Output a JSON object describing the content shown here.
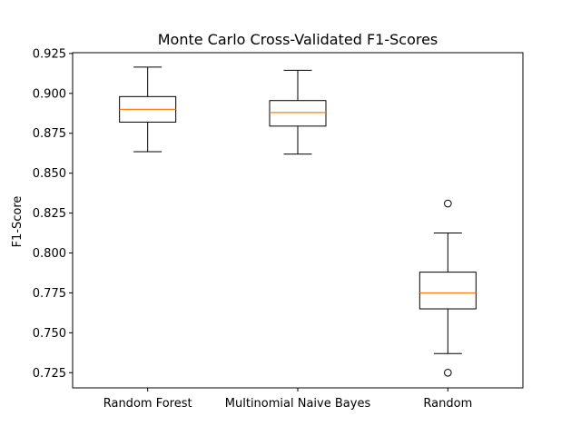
{
  "chart_data": {
    "type": "box",
    "title": "Monte Carlo Cross-Validated F1-Scores",
    "xlabel": "",
    "ylabel": "F1-Score",
    "ylim": [
      0.7155,
      0.9255
    ],
    "yticks": [
      "0.725",
      "0.750",
      "0.775",
      "0.800",
      "0.825",
      "0.850",
      "0.875",
      "0.900",
      "0.925"
    ],
    "ytick_values": [
      0.725,
      0.75,
      0.775,
      0.8,
      0.825,
      0.85,
      0.875,
      0.9,
      0.925
    ],
    "categories": [
      "Random Forest",
      "Multinomial Naive Bayes",
      "Random"
    ],
    "boxes": [
      {
        "whisker_low": 0.8635,
        "q1": 0.882,
        "median": 0.89,
        "q3": 0.898,
        "whisker_high": 0.9165,
        "outliers": []
      },
      {
        "whisker_low": 0.862,
        "q1": 0.8795,
        "median": 0.888,
        "q3": 0.8955,
        "whisker_high": 0.9145,
        "outliers": []
      },
      {
        "whisker_low": 0.737,
        "q1": 0.765,
        "median": 0.775,
        "q3": 0.788,
        "whisker_high": 0.8125,
        "outliers": [
          0.831,
          0.725
        ]
      }
    ],
    "colors": {
      "box": "#000000",
      "median": "#ff7f0e",
      "frame": "#000000"
    },
    "grid": false
  }
}
